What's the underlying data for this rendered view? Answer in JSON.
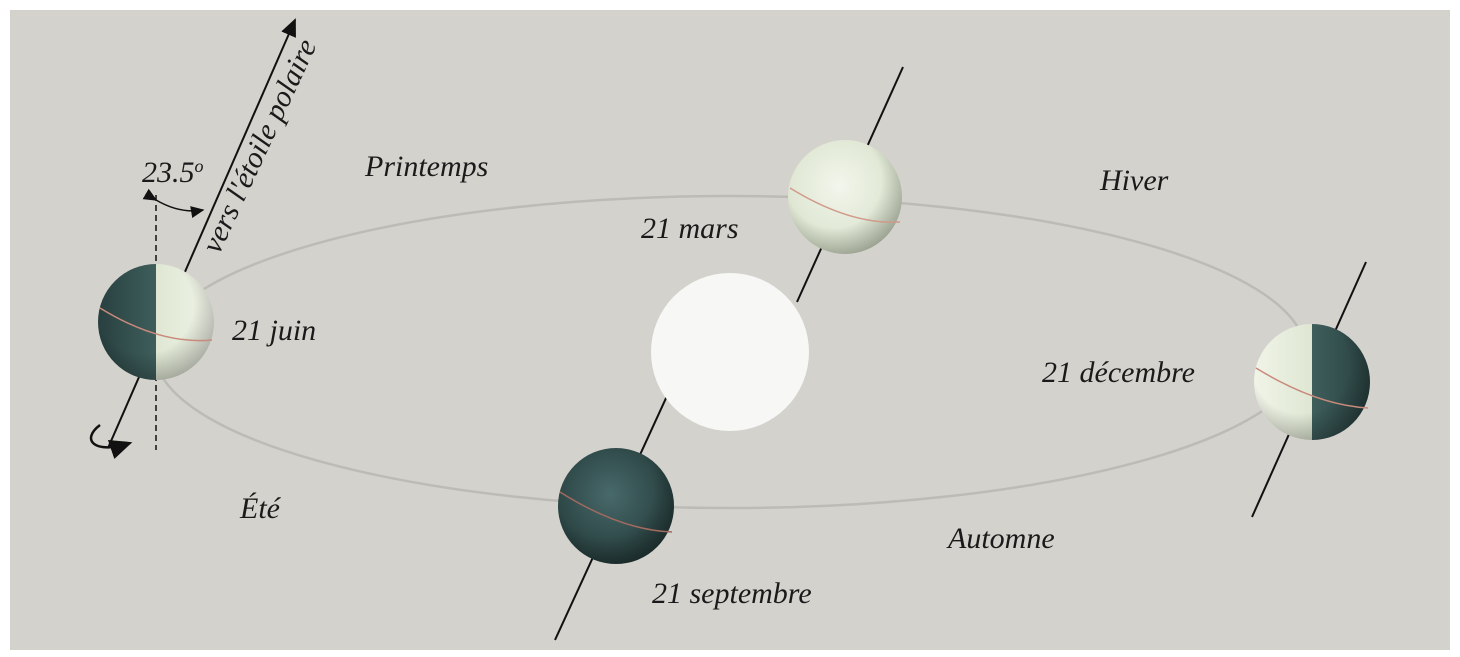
{
  "pointer_label": "vers l'étoile polaire",
  "angle": {
    "value": "23.5",
    "unit": "o"
  },
  "seasons": {
    "spring": "Printemps",
    "winter": "Hiver",
    "summer": "Été",
    "autumn": "Automne"
  },
  "dates": {
    "june": "21 juin",
    "march": "21 mars",
    "december": "21 décembre",
    "september": "21 septembre"
  }
}
